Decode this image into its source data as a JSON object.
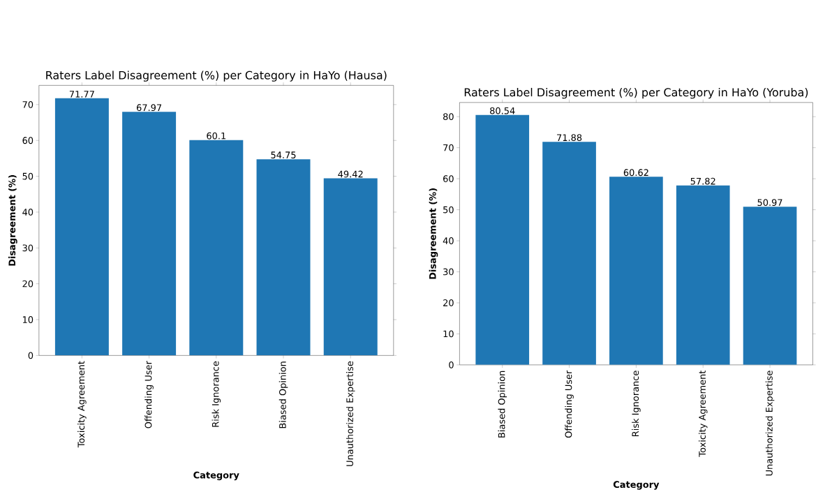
{
  "chart_data": [
    {
      "type": "bar",
      "title": "Raters Label Disagreement (%) per Category in HaYo (Hausa)",
      "xlabel": "Category",
      "ylabel": "Disagreement (%)",
      "categories": [
        "Toxicity Agreement",
        "Offending User",
        "Risk Ignorance",
        "Biased Opinion",
        "Unauthorized Expertise"
      ],
      "values": [
        71.77,
        67.97,
        60.1,
        54.75,
        49.42
      ],
      "color": "#1f77b4",
      "data_labels": true,
      "ylim": [
        0,
        75.36
      ],
      "yticks": [
        0,
        10,
        20,
        30,
        40,
        50,
        60,
        70
      ]
    },
    {
      "type": "bar",
      "title": "Raters Label Disagreement (%) per Category in HaYo (Yoruba)",
      "xlabel": "Category",
      "ylabel": "Disagreement (%)",
      "categories": [
        "Biased Opinion",
        "Offending User",
        "Risk Ignorance",
        "Toxicity Agreement",
        "Unauthorized Expertise"
      ],
      "values": [
        80.54,
        71.88,
        60.62,
        57.82,
        50.97
      ],
      "color": "#1f77b4",
      "data_labels": true,
      "ylim": [
        0,
        84.57
      ],
      "yticks": [
        0,
        10,
        20,
        30,
        40,
        50,
        60,
        70,
        80
      ]
    }
  ]
}
